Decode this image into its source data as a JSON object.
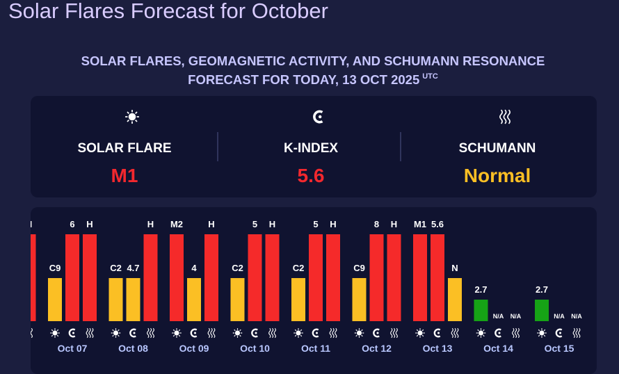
{
  "page": {
    "title": "Solar Flares Forecast for October"
  },
  "subtitle": {
    "text": "SOLAR FLARES, GEOMAGNETIC ACTIVITY, AND SCHUMANN RESONANCE FORECAST FOR TODAY, 13 OCT 2025",
    "tz": "UTC"
  },
  "summary": [
    {
      "label": "SOLAR FLARE",
      "value": "M1",
      "color": "#f2282e",
      "icon": "sun"
    },
    {
      "label": "K-INDEX",
      "value": 5.6,
      "color": "#f2282e",
      "icon": "magnet"
    },
    {
      "label": "SCHUMANN",
      "value": "Normal",
      "color": "#fbbf24",
      "icon": "waves"
    }
  ],
  "forecast": {
    "days": [
      {
        "date": null,
        "bars": [
          null,
          null,
          {
            "label": "H",
            "color": "#f52a2a"
          }
        ]
      },
      {
        "date": "Oct 07",
        "bars": [
          {
            "label": "C9",
            "color": "#fbbf24"
          },
          {
            "label": 6,
            "color": "#f52a2a"
          },
          {
            "label": "H",
            "color": "#f52a2a"
          }
        ]
      },
      {
        "date": "Oct 08",
        "bars": [
          {
            "label": "C2",
            "color": "#fbbf24"
          },
          {
            "label": 4.7,
            "color": "#fbbf24"
          },
          {
            "label": "H",
            "color": "#f52a2a"
          }
        ]
      },
      {
        "date": "Oct 09",
        "bars": [
          {
            "label": "M2",
            "color": "#f52a2a"
          },
          {
            "label": 4,
            "color": "#fbbf24"
          },
          {
            "label": "H",
            "color": "#f52a2a"
          }
        ]
      },
      {
        "date": "Oct 10",
        "bars": [
          {
            "label": "C2",
            "color": "#fbbf24"
          },
          {
            "label": 5,
            "color": "#f52a2a"
          },
          {
            "label": "H",
            "color": "#f52a2a"
          }
        ]
      },
      {
        "date": "Oct 11",
        "bars": [
          {
            "label": "C2",
            "color": "#fbbf24"
          },
          {
            "label": 5,
            "color": "#f52a2a"
          },
          {
            "label": "H",
            "color": "#f52a2a"
          }
        ]
      },
      {
        "date": "Oct 12",
        "bars": [
          {
            "label": "C9",
            "color": "#fbbf24"
          },
          {
            "label": 8,
            "color": "#f52a2a"
          },
          {
            "label": "H",
            "color": "#f52a2a"
          }
        ]
      },
      {
        "date": "Oct 13",
        "bars": [
          {
            "label": "M1",
            "color": "#f52a2a"
          },
          {
            "label": 5.6,
            "color": "#f52a2a"
          },
          {
            "label": "N",
            "color": "#fbbf24"
          }
        ]
      },
      {
        "date": "Oct 14",
        "bars": [
          {
            "label": 2.7,
            "color": "#16a316"
          },
          {
            "label": "N/A",
            "color": null
          },
          {
            "label": "N/A",
            "color": null
          }
        ]
      },
      {
        "date": "Oct 15",
        "bars": [
          {
            "label": 2.7,
            "color": "#16a316"
          },
          {
            "label": "N/A",
            "color": null
          },
          {
            "label": "N/A",
            "color": null
          }
        ]
      }
    ]
  }
}
